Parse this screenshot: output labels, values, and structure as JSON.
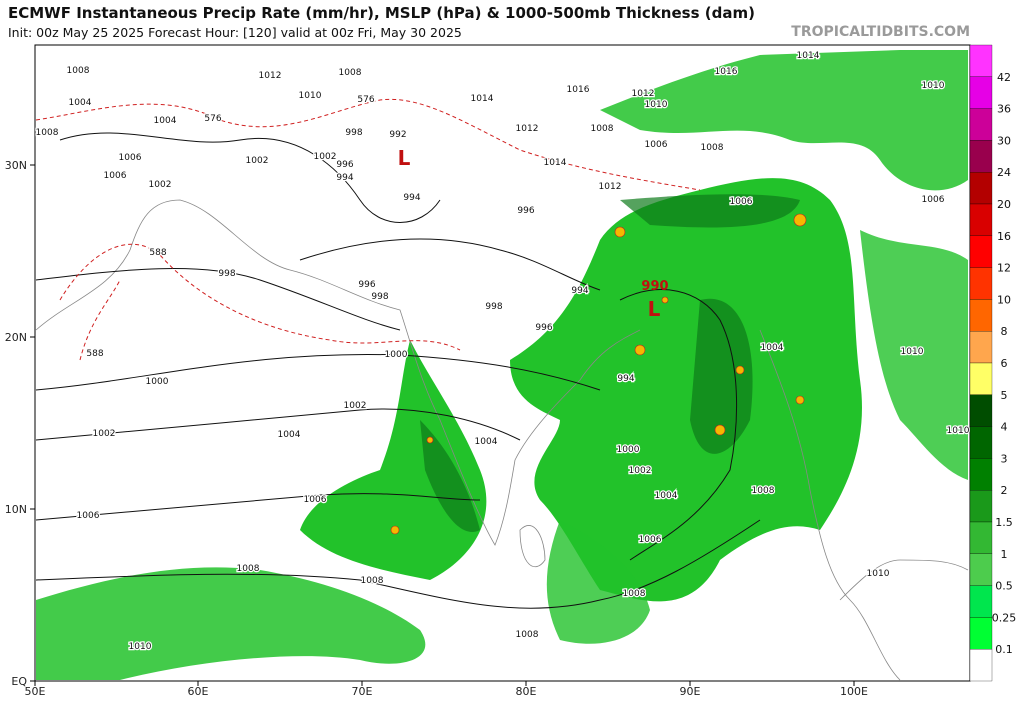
{
  "header": {
    "title": "ECMWF Instantaneous Precip Rate (mm/hr), MSLP (hPa) & 1000-500mb Thickness (dam)",
    "subtitle": "Init: 00z May 25 2025   Forecast Hour: [120]   valid at 00z Fri, May 30 2025",
    "watermark": "TROPICALTIDBITS.COM"
  },
  "axes": {
    "latitude_labels": [
      "30N",
      "20N",
      "10N",
      "EQ"
    ],
    "longitude_labels": [
      "50E",
      "60E",
      "70E",
      "80E",
      "90E",
      "100E"
    ]
  },
  "contour_labels": [
    "1008",
    "1004",
    "1008",
    "1004",
    "1006",
    "1002",
    "1006",
    "1002",
    "1012",
    "1010",
    "1008",
    "998",
    "1002",
    "996",
    "994",
    "994",
    "996",
    "998",
    "996",
    "998",
    "998",
    "996",
    "994",
    "1000",
    "1000",
    "1002",
    "1002",
    "1004",
    "1004",
    "1000",
    "1002",
    "1004",
    "1006",
    "1006",
    "1006",
    "1008",
    "1008",
    "1008",
    "1010",
    "1008",
    "994",
    "1008",
    "1004",
    "1010",
    "1010",
    "1010",
    "1006",
    "1010",
    "1014",
    "1016",
    "1012",
    "1010",
    "1016",
    "1014",
    "1012",
    "1008",
    "1006",
    "1008",
    "1012",
    "1006",
    "1014",
    "588",
    "588",
    "576",
    "576",
    "992"
  ],
  "lows": [
    {
      "pressure": "990",
      "symbol": "L"
    },
    {
      "symbol": "L"
    }
  ],
  "colorbar": {
    "labels": [
      "42",
      "36",
      "30",
      "24",
      "20",
      "16",
      "12",
      "10",
      "8",
      "6",
      "5",
      "4",
      "3",
      "2",
      "1.5",
      "1",
      "0.5",
      "0.25",
      "0.1"
    ],
    "colors": [
      "#ff33ff",
      "#e600e6",
      "#cc0099",
      "#99004d",
      "#b30000",
      "#d90000",
      "#ff0000",
      "#ff3300",
      "#ff6600",
      "#ffa64d",
      "#ffff66",
      "#004d00",
      "#006600",
      "#008000",
      "#1a991a",
      "#33b833",
      "#4dcc4d",
      "#00e64d",
      "#00ff33",
      "#ffffff"
    ]
  }
}
